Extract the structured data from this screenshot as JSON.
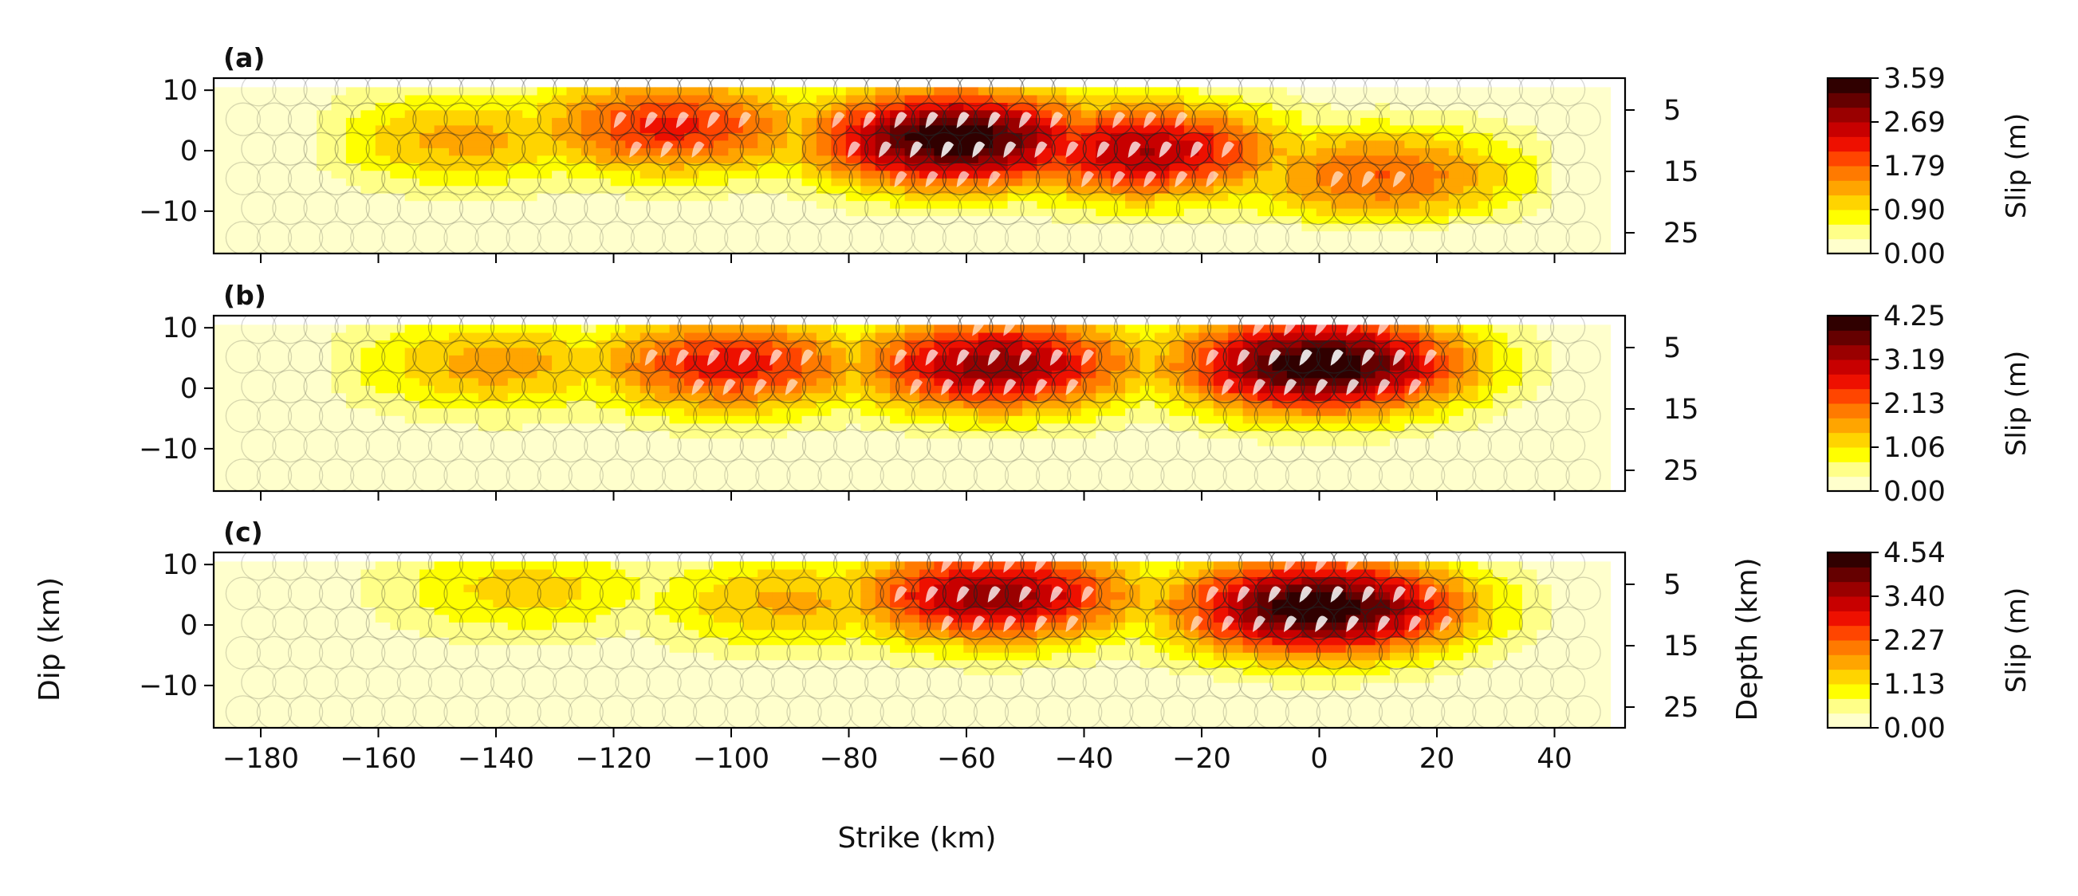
{
  "chart_data": {
    "type": "heatmap",
    "shared_xlabel": "Strike (km)",
    "shared_ylabel": "Dip (km)",
    "depth_label": "Depth (km)",
    "colorbar_label": "Slip (m)",
    "xlim": [
      -188,
      52
    ],
    "ylim": [
      -17,
      12
    ],
    "x_ticks": [
      -180,
      -160,
      -140,
      -120,
      -100,
      -80,
      -60,
      -40,
      -20,
      0,
      20,
      40
    ],
    "x_tick_labels": [
      "−180",
      "−160",
      "−140",
      "−120",
      "−100",
      "−80",
      "−60",
      "−40",
      "−20",
      "0",
      "20",
      "40"
    ],
    "y_ticks": [
      10,
      0,
      -10
    ],
    "y_tick_labels": [
      "10",
      "0",
      "−10"
    ],
    "depth_ticks": [
      5,
      15,
      25
    ],
    "depth_tick_labels": [
      "5",
      "15",
      "25"
    ],
    "colormap": [
      "#ffffcc",
      "#ffff88",
      "#ffff00",
      "#ffd400",
      "#ffa500",
      "#ff7a00",
      "#ff4500",
      "#ee1000",
      "#c80000",
      "#9a0000",
      "#650000",
      "#300000"
    ],
    "panels": [
      {
        "label": "(a)",
        "colorbar_max": 3.59,
        "colorbar_ticks": [
          "0.00",
          "0.90",
          "1.79",
          "2.69",
          "3.59"
        ],
        "slip_patches_m": [
          {
            "center_strike_km": -62,
            "center_dip_km": 2,
            "slip_m": 3.59
          },
          {
            "center_strike_km": -30,
            "center_dip_km": 0,
            "slip_m": 2.7
          },
          {
            "center_strike_km": -110,
            "center_dip_km": 4,
            "slip_m": 2.2
          },
          {
            "center_strike_km": 10,
            "center_dip_km": -4,
            "slip_m": 1.8
          },
          {
            "center_strike_km": -145,
            "center_dip_km": 2,
            "slip_m": 1.3
          }
        ]
      },
      {
        "label": "(b)",
        "colorbar_max": 4.25,
        "colorbar_ticks": [
          "0.00",
          "1.06",
          "2.13",
          "3.19",
          "4.25"
        ],
        "slip_patches_m": [
          {
            "center_strike_km": 0,
            "center_dip_km": 4,
            "slip_m": 4.25
          },
          {
            "center_strike_km": -55,
            "center_dip_km": 4,
            "slip_m": 3.4
          },
          {
            "center_strike_km": -100,
            "center_dip_km": 4,
            "slip_m": 2.7
          },
          {
            "center_strike_km": -140,
            "center_dip_km": 4,
            "slip_m": 1.6
          }
        ]
      },
      {
        "label": "(c)",
        "colorbar_max": 4.54,
        "colorbar_ticks": [
          "0.00",
          "1.13",
          "2.27",
          "3.40",
          "4.54"
        ],
        "slip_patches_m": [
          {
            "center_strike_km": 0,
            "center_dip_km": 3,
            "slip_m": 4.54
          },
          {
            "center_strike_km": -55,
            "center_dip_km": 5,
            "slip_m": 3.6
          },
          {
            "center_strike_km": -90,
            "center_dip_km": 4,
            "slip_m": 1.6
          },
          {
            "center_strike_km": -135,
            "center_dip_km": 6,
            "slip_m": 1.3
          }
        ]
      }
    ]
  }
}
